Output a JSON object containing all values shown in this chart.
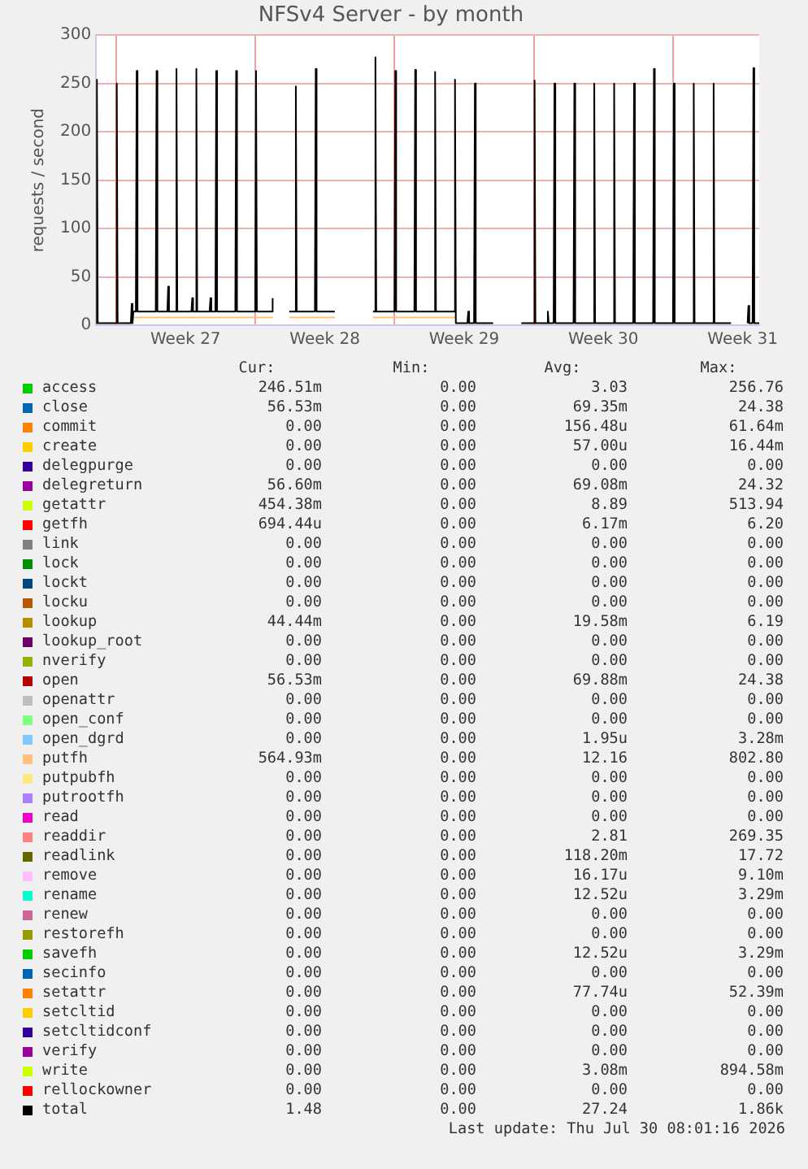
{
  "chart_data": {
    "type": "line",
    "title": "NFSv4 Server - by month",
    "ylabel": "requests / second",
    "marker": "none",
    "grid": true,
    "legend": "bottom",
    "xlim": [
      "2026-06-28T00:00",
      "2026-07-31T08:00"
    ],
    "xticks": [
      {
        "value": "2026-06-29T00:00",
        "label": null
      },
      {
        "value": "2026-07-02T12:00",
        "label": "Week 27"
      },
      {
        "value": "2026-07-06T00:00",
        "label": null
      },
      {
        "value": "2026-07-09T12:00",
        "label": "Week 28"
      },
      {
        "value": "2026-07-13T00:00",
        "label": null
      },
      {
        "value": "2026-07-16T12:00",
        "label": "Week 29"
      },
      {
        "value": "2026-07-20T00:00",
        "label": null
      },
      {
        "value": "2026-07-23T12:00",
        "label": "Week 30"
      },
      {
        "value": "2026-07-27T00:00",
        "label": null
      },
      {
        "value": "2026-07-30T12:00",
        "label": "Week 31"
      }
    ],
    "ylim": [
      0,
      300
    ],
    "yticks": [
      0,
      50,
      100,
      150,
      200,
      250,
      300
    ],
    "series": [
      {
        "name": "access",
        "color": "#00cc00"
      },
      {
        "name": "close",
        "color": "#0066b3"
      },
      {
        "name": "commit",
        "color": "#ff8000"
      },
      {
        "name": "create",
        "color": "#ffcc00"
      },
      {
        "name": "delegpurge",
        "color": "#330099"
      },
      {
        "name": "delegreturn",
        "color": "#990099"
      },
      {
        "name": "getattr",
        "color": "#ccff00"
      },
      {
        "name": "getfh",
        "color": "#ff0000"
      },
      {
        "name": "link",
        "color": "#808080"
      },
      {
        "name": "lock",
        "color": "#008f00"
      },
      {
        "name": "lockt",
        "color": "#00487d"
      },
      {
        "name": "locku",
        "color": "#b35a00"
      },
      {
        "name": "lookup",
        "color": "#b38f00"
      },
      {
        "name": "lookup_root",
        "color": "#6b006b"
      },
      {
        "name": "nverify",
        "color": "#8fb300"
      },
      {
        "name": "open",
        "color": "#b30000"
      },
      {
        "name": "openattr",
        "color": "#bebebe"
      },
      {
        "name": "open_conf",
        "color": "#80ff80"
      },
      {
        "name": "open_dgrd",
        "color": "#80c9ff"
      },
      {
        "name": "putfh",
        "color": "#ffc080",
        "x": [
          "2026-06-29T21:00",
          "2026-07-06T21:00",
          "2026-07-06T22:00",
          "2026-07-07T17:00",
          "2026-07-10T00:00",
          "2026-07-10T01:00",
          "2026-07-11T22:00",
          "2026-07-16T02:00"
        ],
        "values": [
          8,
          8,
          null,
          8,
          8,
          null,
          8,
          8
        ]
      },
      {
        "name": "putpubfh",
        "color": "#ffe680"
      },
      {
        "name": "putrootfh",
        "color": "#aa80ff"
      },
      {
        "name": "read",
        "color": "#ee00cc"
      },
      {
        "name": "readdir",
        "color": "#ff8080"
      },
      {
        "name": "readlink",
        "color": "#666600"
      },
      {
        "name": "remove",
        "color": "#ffbfff"
      },
      {
        "name": "rename",
        "color": "#00ffcc"
      },
      {
        "name": "renew",
        "color": "#cc6699"
      },
      {
        "name": "restorefh",
        "color": "#999900"
      },
      {
        "name": "savefh",
        "color": "#00cc00"
      },
      {
        "name": "secinfo",
        "color": "#0066b3"
      },
      {
        "name": "setattr",
        "color": "#ff8000"
      },
      {
        "name": "setcltid",
        "color": "#ffcc00"
      },
      {
        "name": "setcltidconf",
        "color": "#330099"
      },
      {
        "name": "verify",
        "color": "#990099"
      },
      {
        "name": "write",
        "color": "#ccff00"
      },
      {
        "name": "rellockowner",
        "color": "#ff0000"
      },
      {
        "name": "total",
        "color": "#000000",
        "x": [
          "2026-06-28T00:00",
          "2026-06-28T01:00",
          "2026-06-28T02:00",
          "2026-06-29T00:00",
          "2026-06-29T01:00",
          "2026-06-29T02:00",
          "2026-06-29T18:00",
          "2026-06-29T19:00",
          "2026-06-29T20:00",
          "2026-06-29T21:00",
          "2026-06-30T00:00",
          "2026-06-30T01:00",
          "2026-06-30T02:00",
          "2026-07-01T00:00",
          "2026-07-01T01:00",
          "2026-07-01T02:00",
          "2026-07-01T14:00",
          "2026-07-01T15:00",
          "2026-07-01T16:00",
          "2026-07-02T00:00",
          "2026-07-02T01:00",
          "2026-07-02T02:00",
          "2026-07-02T19:00",
          "2026-07-02T20:00",
          "2026-07-02T21:00",
          "2026-07-03T00:00",
          "2026-07-03T01:00",
          "2026-07-03T02:00",
          "2026-07-03T17:00",
          "2026-07-03T18:00",
          "2026-07-03T19:00",
          "2026-07-04T00:00",
          "2026-07-04T01:00",
          "2026-07-04T02:00",
          "2026-07-05T00:00",
          "2026-07-05T01:00",
          "2026-07-05T02:00",
          "2026-07-06T00:00",
          "2026-07-06T01:00",
          "2026-07-06T02:00",
          "2026-07-06T20:00",
          "2026-07-06T21:00",
          "2026-07-06T22:00",
          "2026-07-07T17:00",
          "2026-07-08T00:00",
          "2026-07-08T01:00",
          "2026-07-08T02:00",
          "2026-07-09T00:00",
          "2026-07-09T01:00",
          "2026-07-09T02:00",
          "2026-07-10T00:00",
          "2026-07-10T01:00",
          "2026-07-11T22:00",
          "2026-07-12T00:00",
          "2026-07-12T01:00",
          "2026-07-12T02:00",
          "2026-07-13T00:00",
          "2026-07-13T01:00",
          "2026-07-13T02:00",
          "2026-07-14T00:00",
          "2026-07-14T01:00",
          "2026-07-14T02:00",
          "2026-07-15T00:00",
          "2026-07-15T01:00",
          "2026-07-15T02:00",
          "2026-07-16T00:00",
          "2026-07-16T01:00",
          "2026-07-16T02:00",
          "2026-07-16T16:00",
          "2026-07-16T17:00",
          "2026-07-16T18:00",
          "2026-07-17T00:00",
          "2026-07-17T01:00",
          "2026-07-17T02:00",
          "2026-07-17T23:00",
          "2026-07-18T00:00",
          "2026-07-19T09:00",
          "2026-07-20T00:00",
          "2026-07-20T01:00",
          "2026-07-20T02:00",
          "2026-07-20T16:00",
          "2026-07-20T17:00",
          "2026-07-20T18:00",
          "2026-07-21T00:00",
          "2026-07-21T01:00",
          "2026-07-21T02:00",
          "2026-07-22T00:00",
          "2026-07-22T01:00",
          "2026-07-22T02:00",
          "2026-07-23T00:00",
          "2026-07-23T01:00",
          "2026-07-23T02:00",
          "2026-07-24T00:00",
          "2026-07-24T01:00",
          "2026-07-24T02:00",
          "2026-07-25T00:00",
          "2026-07-25T01:00",
          "2026-07-25T02:00",
          "2026-07-26T00:00",
          "2026-07-26T01:00",
          "2026-07-26T02:00",
          "2026-07-27T00:00",
          "2026-07-27T01:00",
          "2026-07-27T02:00",
          "2026-07-28T00:00",
          "2026-07-28T01:00",
          "2026-07-28T02:00",
          "2026-07-29T00:00",
          "2026-07-29T01:00",
          "2026-07-29T02:00",
          "2026-07-29T22:00",
          "2026-07-29T23:00",
          "2026-07-30T18:00",
          "2026-07-30T19:00",
          "2026-07-30T20:00",
          "2026-07-31T00:00",
          "2026-07-31T01:00",
          "2026-07-31T02:00",
          "2026-07-31T08:00"
        ],
        "values": [
          2,
          254,
          2,
          2,
          250,
          2,
          2,
          22,
          2,
          14,
          14,
          263,
          14,
          14,
          263,
          14,
          14,
          40,
          14,
          14,
          265,
          14,
          14,
          28,
          14,
          14,
          265,
          14,
          14,
          28,
          14,
          14,
          263,
          14,
          14,
          263,
          14,
          14,
          263,
          14,
          14,
          28,
          null,
          14,
          14,
          247,
          14,
          14,
          265,
          14,
          14,
          null,
          14,
          14,
          277,
          14,
          14,
          263,
          14,
          14,
          264,
          14,
          14,
          262,
          14,
          14,
          254,
          2,
          2,
          14,
          2,
          2,
          250,
          2,
          2,
          null,
          2,
          2,
          253,
          2,
          2,
          14,
          2,
          2,
          250,
          2,
          2,
          250,
          2,
          2,
          250,
          2,
          2,
          250,
          2,
          2,
          250,
          2,
          2,
          265,
          2,
          2,
          250,
          2,
          2,
          250,
          2,
          2,
          250,
          2,
          2,
          null,
          2,
          20,
          2,
          2,
          266,
          2,
          2
        ]
      }
    ],
    "annotations": [
      "Cur:",
      "Min:",
      "Avg:",
      "Max:",
      "246.51m",
      "0.00",
      "3.03",
      "256.76",
      "56.53m",
      "0.00",
      "69.35m",
      "24.38",
      "0.00",
      "0.00",
      "156.48u",
      "61.64m",
      "0.00",
      "0.00",
      "57.00u",
      "16.44m",
      "0.00",
      "0.00",
      "0.00",
      "0.00",
      "56.60m",
      "0.00",
      "69.08m",
      "24.32",
      "454.38m",
      "0.00",
      "8.89",
      "513.94",
      "694.44u",
      "0.00",
      "6.17m",
      "6.20",
      "0.00",
      "0.00",
      "0.00",
      "0.00",
      "0.00",
      "0.00",
      "0.00",
      "0.00",
      "0.00",
      "0.00",
      "0.00",
      "0.00",
      "0.00",
      "0.00",
      "0.00",
      "0.00",
      "44.44m",
      "0.00",
      "19.58m",
      "6.19",
      "0.00",
      "0.00",
      "0.00",
      "0.00",
      "0.00",
      "0.00",
      "0.00",
      "0.00",
      "56.53m",
      "0.00",
      "69.88m",
      "24.38",
      "0.00",
      "0.00",
      "0.00",
      "0.00",
      "0.00",
      "0.00",
      "0.00",
      "0.00",
      "0.00",
      "0.00",
      "1.95u",
      "3.28m",
      "564.93m",
      "0.00",
      "12.16",
      "802.80",
      "0.00",
      "0.00",
      "0.00",
      "0.00",
      "0.00",
      "0.00",
      "0.00",
      "0.00",
      "0.00",
      "0.00",
      "0.00",
      "0.00",
      "0.00",
      "0.00",
      "2.81",
      "269.35",
      "0.00",
      "0.00",
      "118.20m",
      "17.72",
      "0.00",
      "0.00",
      "16.17u",
      "9.10m",
      "0.00",
      "0.00",
      "12.52u",
      "3.29m",
      "0.00",
      "0.00",
      "0.00",
      "0.00",
      "0.00",
      "0.00",
      "0.00",
      "0.00",
      "0.00",
      "0.00",
      "12.52u",
      "3.29m",
      "0.00",
      "0.00",
      "0.00",
      "0.00",
      "0.00",
      "0.00",
      "77.74u",
      "52.39m",
      "0.00",
      "0.00",
      "0.00",
      "0.00",
      "0.00",
      "0.00",
      "0.00",
      "0.00",
      "0.00",
      "0.00",
      "0.00",
      "0.00",
      "0.00",
      "0.00",
      "3.08m",
      "894.58m",
      "0.00",
      "0.00",
      "0.00",
      "0.00",
      "1.48",
      "0.00",
      "27.24",
      "1.86k",
      "Last update: Thu Jul 30 08:01:16 2026"
    ]
  }
}
